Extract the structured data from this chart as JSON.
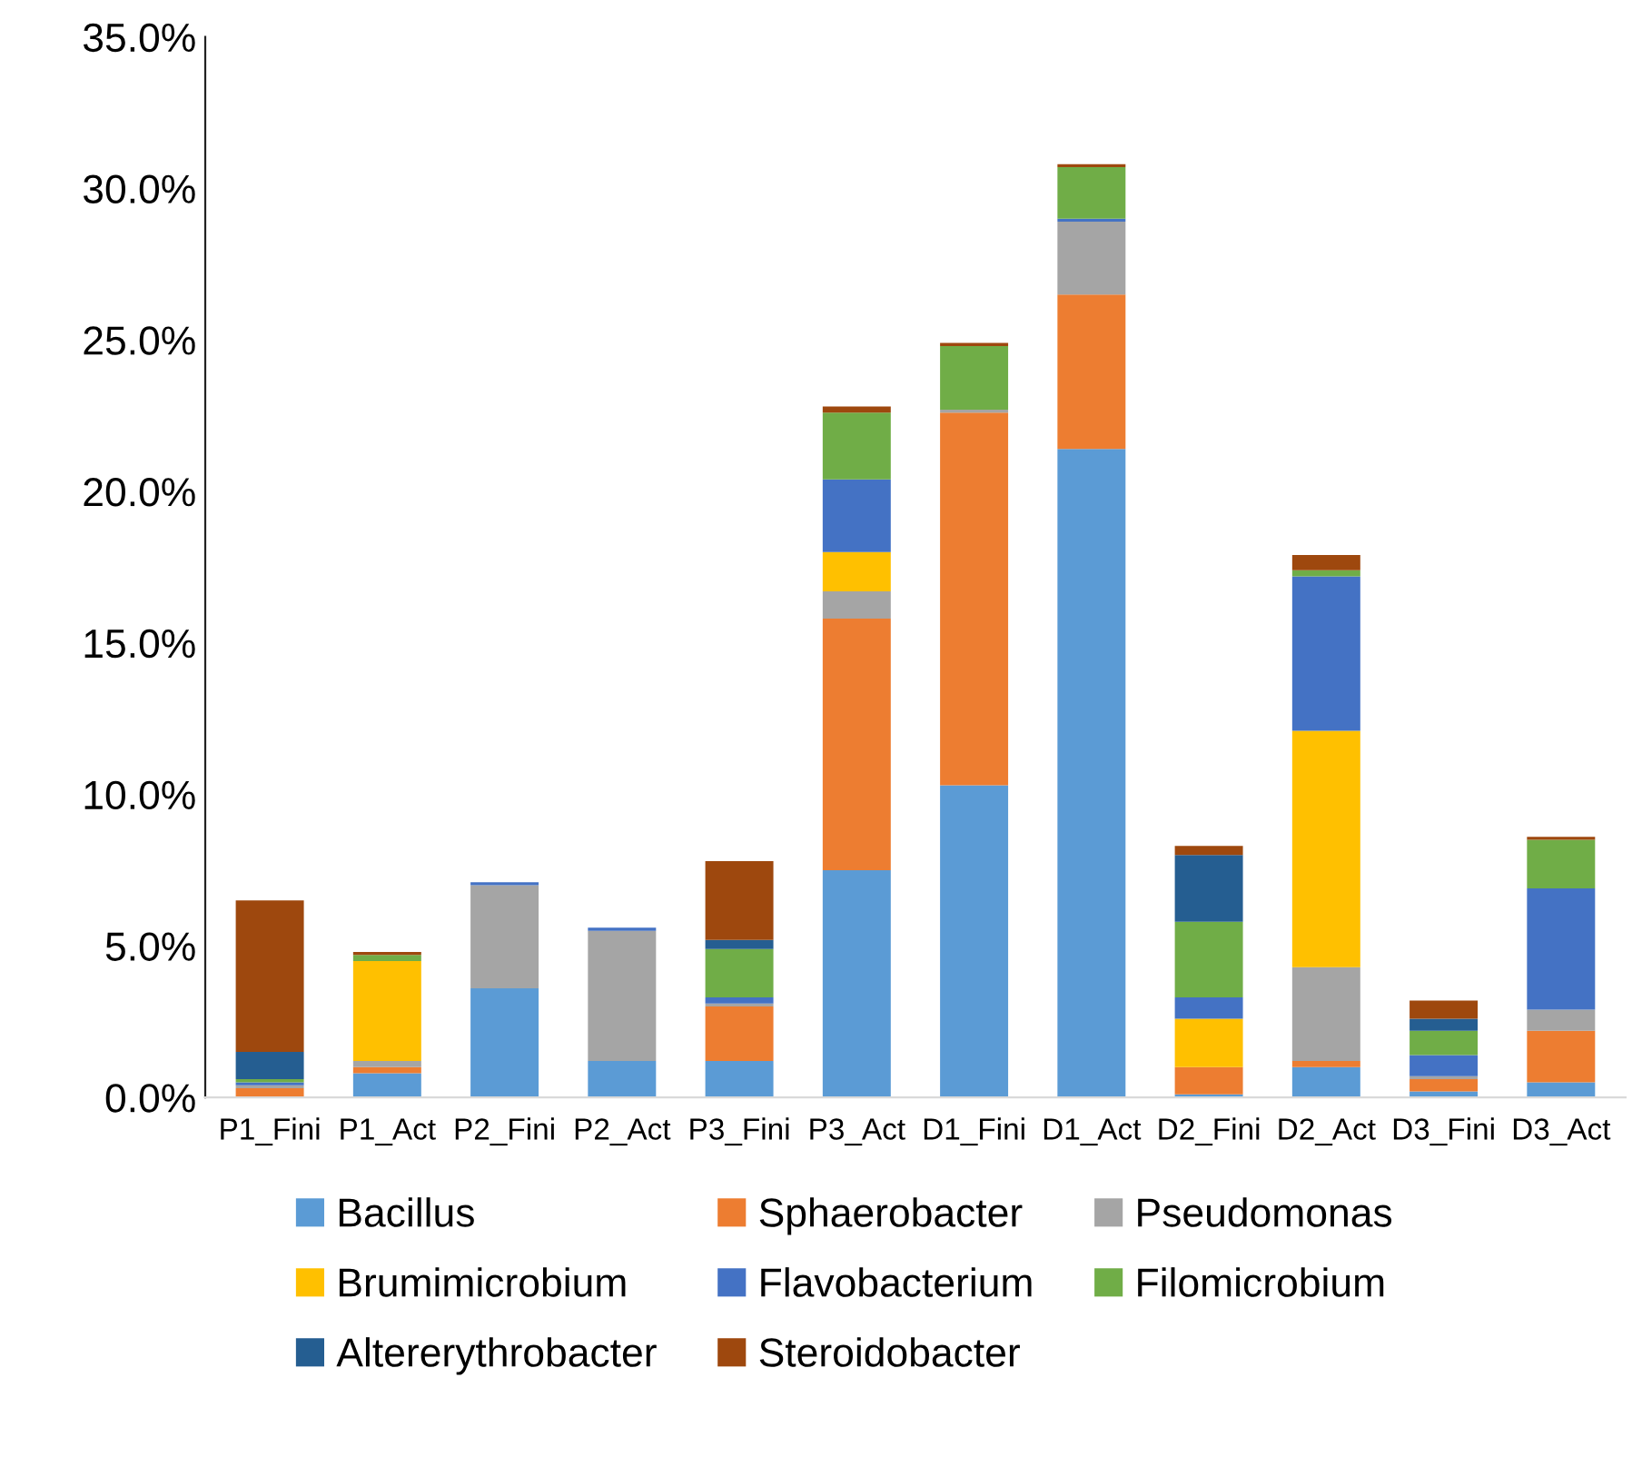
{
  "chart_data": {
    "type": "bar",
    "stacked": true,
    "categories": [
      "P1_Fini",
      "P1_Act",
      "P2_Fini",
      "P2_Act",
      "P3_Fini",
      "P3_Act",
      "D1_Fini",
      "D1_Act",
      "D2_Fini",
      "D2_Act",
      "D3_Fini",
      "D3_Act"
    ],
    "series": [
      {
        "name": "Bacillus",
        "color": "#5b9bd5",
        "values": [
          0,
          0.8,
          3.6,
          1.2,
          1.2,
          7.5,
          10.3,
          21.4,
          0.1,
          1.0,
          0.2,
          0.5
        ]
      },
      {
        "name": "Sphaerobacter",
        "color": "#ed7d31",
        "values": [
          0.3,
          0.2,
          0,
          0,
          1.8,
          8.3,
          12.3,
          5.1,
          0.9,
          0.2,
          0.4,
          1.7
        ]
      },
      {
        "name": "Pseudomonas",
        "color": "#a5a5a5",
        "values": [
          0.1,
          0.2,
          3.4,
          4.3,
          0.1,
          0.9,
          0.1,
          2.4,
          0,
          3.1,
          0.1,
          0.7
        ]
      },
      {
        "name": "Brumimicrobium",
        "color": "#ffc000",
        "values": [
          0,
          3.3,
          0,
          0,
          0,
          1.3,
          0,
          0,
          1.6,
          7.8,
          0,
          0
        ]
      },
      {
        "name": "Flavobacterium",
        "color": "#4472c4",
        "values": [
          0.1,
          0,
          0.1,
          0.1,
          0.2,
          2.4,
          0,
          0.1,
          0.7,
          5.1,
          0.7,
          4.0
        ]
      },
      {
        "name": "Filomicrobium",
        "color": "#70ad47",
        "values": [
          0.1,
          0.2,
          0,
          0,
          1.6,
          2.2,
          2.1,
          1.7,
          2.5,
          0.2,
          0.8,
          1.6
        ]
      },
      {
        "name": "Altererythrobacter",
        "color": "#255e91",
        "values": [
          0.9,
          0,
          0,
          0,
          0.3,
          0,
          0,
          0,
          2.2,
          0,
          0.4,
          0
        ]
      },
      {
        "name": "Steroidobacter",
        "color": "#9e480e",
        "values": [
          5.0,
          0.1,
          0,
          0,
          2.6,
          0.2,
          0.1,
          0.1,
          0.3,
          0.5,
          0.6,
          0.1
        ]
      }
    ],
    "ylim": [
      0,
      35
    ],
    "yticks": [
      {
        "value": 0,
        "label": "0.0%"
      },
      {
        "value": 5,
        "label": "5.0%"
      },
      {
        "value": 10,
        "label": "10.0%"
      },
      {
        "value": 15,
        "label": "15.0%"
      },
      {
        "value": 20,
        "label": "20.0%"
      },
      {
        "value": 25,
        "label": "25.0%"
      },
      {
        "value": 30,
        "label": "30.0%"
      },
      {
        "value": 35,
        "label": "35.0%"
      }
    ],
    "grid": false,
    "legend": "bottom"
  }
}
